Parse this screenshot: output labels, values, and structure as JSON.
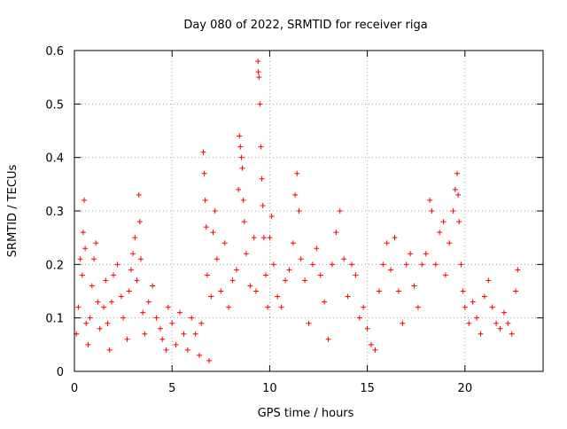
{
  "chart_data": {
    "type": "scatter",
    "title": "Day 080 of 2022, SRMTID for receiver riga",
    "xlabel": "GPS time / hours",
    "ylabel": "SRMTID / TECUs",
    "xlim": [
      0,
      24
    ],
    "ylim": [
      0,
      0.6
    ],
    "x_ticks": [
      0,
      5,
      10,
      15,
      20
    ],
    "x_tick_labels": [
      "0",
      "5",
      "10",
      "15",
      "20"
    ],
    "y_ticks": [
      0,
      0.1,
      0.2,
      0.3,
      0.4,
      0.5,
      0.6
    ],
    "y_tick_labels": [
      "0",
      "0.1",
      "0.2",
      "0.3",
      "0.4",
      "0.5",
      "0.6"
    ],
    "grid": true,
    "marker": "+",
    "color": "#ff0000",
    "series": [
      {
        "name": "SRMTID",
        "points": [
          [
            0.1,
            0.07
          ],
          [
            0.2,
            0.12
          ],
          [
            0.3,
            0.21
          ],
          [
            0.4,
            0.18
          ],
          [
            0.45,
            0.26
          ],
          [
            0.5,
            0.32
          ],
          [
            0.55,
            0.23
          ],
          [
            0.6,
            0.09
          ],
          [
            0.7,
            0.05
          ],
          [
            0.8,
            0.1
          ],
          [
            0.9,
            0.16
          ],
          [
            1.0,
            0.21
          ],
          [
            1.1,
            0.24
          ],
          [
            1.2,
            0.13
          ],
          [
            1.3,
            0.08
          ],
          [
            1.5,
            0.12
          ],
          [
            1.6,
            0.17
          ],
          [
            1.7,
            0.09
          ],
          [
            1.8,
            0.04
          ],
          [
            1.9,
            0.13
          ],
          [
            2.0,
            0.18
          ],
          [
            2.2,
            0.2
          ],
          [
            2.4,
            0.14
          ],
          [
            2.5,
            0.1
          ],
          [
            2.7,
            0.06
          ],
          [
            2.8,
            0.15
          ],
          [
            2.9,
            0.19
          ],
          [
            3.0,
            0.22
          ],
          [
            3.1,
            0.25
          ],
          [
            3.2,
            0.17
          ],
          [
            3.3,
            0.33
          ],
          [
            3.35,
            0.28
          ],
          [
            3.4,
            0.21
          ],
          [
            3.5,
            0.11
          ],
          [
            3.6,
            0.07
          ],
          [
            3.8,
            0.13
          ],
          [
            4.0,
            0.16
          ],
          [
            4.2,
            0.1
          ],
          [
            4.4,
            0.08
          ],
          [
            4.5,
            0.06
          ],
          [
            4.7,
            0.04
          ],
          [
            4.8,
            0.12
          ],
          [
            5.0,
            0.09
          ],
          [
            5.2,
            0.05
          ],
          [
            5.4,
            0.11
          ],
          [
            5.6,
            0.07
          ],
          [
            5.8,
            0.04
          ],
          [
            6.0,
            0.1
          ],
          [
            6.2,
            0.07
          ],
          [
            6.4,
            0.03
          ],
          [
            6.5,
            0.09
          ],
          [
            6.6,
            0.41
          ],
          [
            6.65,
            0.37
          ],
          [
            6.7,
            0.32
          ],
          [
            6.75,
            0.27
          ],
          [
            6.8,
            0.18
          ],
          [
            6.9,
            0.02
          ],
          [
            7.0,
            0.14
          ],
          [
            7.1,
            0.26
          ],
          [
            7.2,
            0.3
          ],
          [
            7.3,
            0.21
          ],
          [
            7.5,
            0.15
          ],
          [
            7.7,
            0.24
          ],
          [
            7.9,
            0.12
          ],
          [
            8.1,
            0.17
          ],
          [
            8.3,
            0.19
          ],
          [
            8.4,
            0.34
          ],
          [
            8.45,
            0.44
          ],
          [
            8.5,
            0.42
          ],
          [
            8.55,
            0.4
          ],
          [
            8.6,
            0.38
          ],
          [
            8.65,
            0.32
          ],
          [
            8.7,
            0.28
          ],
          [
            8.8,
            0.22
          ],
          [
            9.0,
            0.16
          ],
          [
            9.2,
            0.25
          ],
          [
            9.3,
            0.15
          ],
          [
            9.4,
            0.58
          ],
          [
            9.42,
            0.56
          ],
          [
            9.45,
            0.55
          ],
          [
            9.5,
            0.5
          ],
          [
            9.55,
            0.42
          ],
          [
            9.6,
            0.36
          ],
          [
            9.65,
            0.31
          ],
          [
            9.7,
            0.25
          ],
          [
            9.8,
            0.18
          ],
          [
            9.9,
            0.12
          ],
          [
            10.0,
            0.25
          ],
          [
            10.1,
            0.29
          ],
          [
            10.2,
            0.2
          ],
          [
            10.4,
            0.14
          ],
          [
            10.6,
            0.12
          ],
          [
            10.8,
            0.17
          ],
          [
            11.0,
            0.19
          ],
          [
            11.2,
            0.24
          ],
          [
            11.3,
            0.33
          ],
          [
            11.4,
            0.37
          ],
          [
            11.5,
            0.3
          ],
          [
            11.6,
            0.21
          ],
          [
            11.8,
            0.17
          ],
          [
            12.0,
            0.09
          ],
          [
            12.2,
            0.2
          ],
          [
            12.4,
            0.23
          ],
          [
            12.6,
            0.18
          ],
          [
            12.8,
            0.13
          ],
          [
            13.0,
            0.06
          ],
          [
            13.2,
            0.2
          ],
          [
            13.4,
            0.26
          ],
          [
            13.6,
            0.3
          ],
          [
            13.8,
            0.21
          ],
          [
            14.0,
            0.14
          ],
          [
            14.2,
            0.2
          ],
          [
            14.4,
            0.18
          ],
          [
            14.6,
            0.1
          ],
          [
            14.8,
            0.12
          ],
          [
            15.0,
            0.08
          ],
          [
            15.2,
            0.05
          ],
          [
            15.4,
            0.04
          ],
          [
            15.6,
            0.15
          ],
          [
            15.8,
            0.2
          ],
          [
            16.0,
            0.24
          ],
          [
            16.2,
            0.19
          ],
          [
            16.4,
            0.25
          ],
          [
            16.6,
            0.15
          ],
          [
            16.8,
            0.09
          ],
          [
            17.0,
            0.2
          ],
          [
            17.2,
            0.22
          ],
          [
            17.4,
            0.16
          ],
          [
            17.6,
            0.12
          ],
          [
            17.8,
            0.2
          ],
          [
            18.0,
            0.22
          ],
          [
            18.2,
            0.32
          ],
          [
            18.3,
            0.3
          ],
          [
            18.5,
            0.2
          ],
          [
            18.7,
            0.26
          ],
          [
            18.9,
            0.28
          ],
          [
            19.0,
            0.18
          ],
          [
            19.2,
            0.24
          ],
          [
            19.4,
            0.3
          ],
          [
            19.5,
            0.34
          ],
          [
            19.6,
            0.37
          ],
          [
            19.65,
            0.33
          ],
          [
            19.7,
            0.28
          ],
          [
            19.8,
            0.2
          ],
          [
            19.9,
            0.15
          ],
          [
            20.0,
            0.12
          ],
          [
            20.2,
            0.09
          ],
          [
            20.4,
            0.13
          ],
          [
            20.6,
            0.1
          ],
          [
            20.8,
            0.07
          ],
          [
            21.0,
            0.14
          ],
          [
            21.2,
            0.17
          ],
          [
            21.4,
            0.12
          ],
          [
            21.6,
            0.09
          ],
          [
            21.8,
            0.08
          ],
          [
            22.0,
            0.11
          ],
          [
            22.2,
            0.09
          ],
          [
            22.4,
            0.07
          ],
          [
            22.6,
            0.15
          ],
          [
            22.7,
            0.19
          ]
        ]
      }
    ]
  }
}
